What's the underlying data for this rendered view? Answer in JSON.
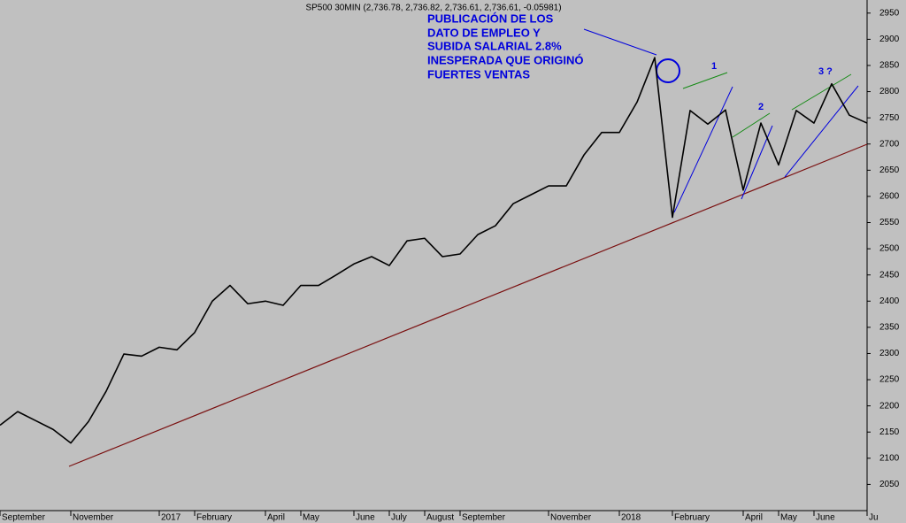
{
  "chart_data": {
    "type": "line",
    "title": "SP500 30MIN (2,736.78, 2,736.82, 2,736.61, 2,736.61, -0.05981)",
    "annotation_lines": [
      "PUBLICACIÓN DE LOS",
      "DATO DE EMPLEO Y",
      "SUBIDA SALARIAL 2.8%",
      "INESPERADA QUE ORIGINÓ",
      "FUERTES VENTAS"
    ],
    "wave_labels": [
      "1",
      "2",
      "3 ?"
    ],
    "categories": [
      "September",
      null,
      null,
      null,
      "November",
      null,
      null,
      null,
      null,
      "2017",
      null,
      "February",
      null,
      null,
      null,
      "April",
      null,
      "May",
      null,
      null,
      "June",
      null,
      "July",
      null,
      "August",
      null,
      "September",
      null,
      null,
      null,
      null,
      "November",
      null,
      null,
      null,
      "2018",
      null,
      null,
      "February",
      null,
      null,
      null,
      "April",
      null,
      "May",
      null,
      "June",
      null,
      null,
      "Ju"
    ],
    "values": [
      2163,
      2189,
      2172,
      2155,
      2129,
      2170,
      2228,
      2299,
      2295,
      2312,
      2307,
      2340,
      2400,
      2430,
      2395,
      2400,
      2392,
      2430,
      2430,
      2450,
      2471,
      2485,
      2468,
      2515,
      2520,
      2485,
      2490,
      2527,
      2544,
      2586,
      2603,
      2620,
      2620,
      2679,
      2722,
      2722,
      2780,
      2865,
      2560,
      2764,
      2738,
      2765,
      2612,
      2740,
      2660,
      2764,
      2740,
      2815,
      2755,
      2740
    ],
    "color": "#000000",
    "ylim": [
      2000,
      2975
    ],
    "yticks": [
      2050,
      2100,
      2150,
      2200,
      2250,
      2300,
      2350,
      2400,
      2450,
      2500,
      2550,
      2600,
      2650,
      2700,
      2750,
      2800,
      2850,
      2900,
      2950
    ],
    "grid": false
  }
}
